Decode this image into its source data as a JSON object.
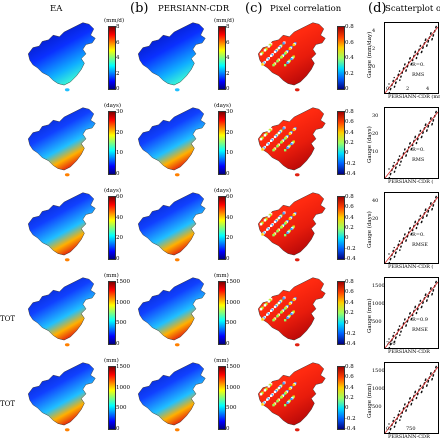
{
  "panels": {
    "a": {
      "letter": "",
      "title": "EA"
    },
    "b": {
      "letter": "(b)",
      "title": "PERSIANN-CDR"
    },
    "c": {
      "letter": "(c)",
      "title": "Pixel correlation"
    },
    "d": {
      "letter": "(d)",
      "title": "Scatterplot of m"
    }
  },
  "row_labels": [
    "",
    "",
    "",
    "TOT",
    "TOT"
  ],
  "rows": [
    {
      "unit": "(mm/d)",
      "ticks": [
        "8",
        "6",
        "4",
        "2",
        "0"
      ],
      "corr_ticks": [
        "0.8",
        "0.6",
        "0.4",
        "0.2",
        "0"
      ],
      "sc_ylabel": "Gauge (mm/day)",
      "sc_xlabel": "PERSIANN-CDR (mm",
      "sc_r": "R=0.",
      "sc_rmse": "RMS",
      "sc_xticks": [
        "0",
        "2",
        "4"
      ],
      "sc_yticks": [
        "4",
        "2",
        "0"
      ]
    },
    {
      "unit": "(days)",
      "ticks": [
        "30",
        "20",
        "10",
        "0"
      ],
      "corr_ticks": [
        "0.8",
        "0.6",
        "0.4",
        "0.2",
        "0",
        "-0.2",
        "-0.4"
      ],
      "sc_ylabel": "Gauge (days)",
      "sc_xlabel": "PERSIANN-CDR (",
      "sc_r": "R=0.",
      "sc_rmse": "RMS",
      "sc_xticks": [],
      "sc_yticks": [
        "30",
        "20",
        "10"
      ]
    },
    {
      "unit": "(days)",
      "ticks": [
        "60",
        "40",
        "20",
        "0"
      ],
      "corr_ticks": [
        "0.8",
        "0.6",
        "0.4",
        "0.2",
        "0",
        "-0.2",
        "-0.4"
      ],
      "sc_ylabel": "Gauge (days)",
      "sc_xlabel": "PERSIANN-CDR (",
      "sc_r": "R=0.",
      "sc_rmse": "RMSE",
      "sc_xticks": [],
      "sc_yticks": [
        "40",
        "20"
      ]
    },
    {
      "unit": "(mm)",
      "ticks": [
        "1500",
        "1000",
        "500",
        "0"
      ],
      "corr_ticks": [
        "0.8",
        "0.6",
        "0.4",
        "0.2",
        "0",
        "-0.2",
        "-0.4"
      ],
      "sc_ylabel": "Gauge (mm)",
      "sc_xlabel": "PERSIANN-CDR",
      "sc_r": "R=0.9",
      "sc_rmse": "RMSE",
      "sc_xticks": [
        "750"
      ],
      "sc_yticks": [
        "1500",
        "1000",
        "500"
      ]
    },
    {
      "unit": "(mm)",
      "ticks": [
        "1500",
        "1000",
        "500",
        "0"
      ],
      "corr_ticks": [
        "0.8",
        "0.6",
        "0.4",
        "0.2",
        "0",
        "-0.2",
        "-0.4"
      ],
      "sc_ylabel": "Gauge (mm)",
      "sc_xlabel": "PERSIANN-CDR",
      "sc_r": "",
      "sc_rmse": "",
      "sc_xticks": [
        "0",
        "750"
      ],
      "sc_yticks": [
        "1500",
        "1000",
        "500"
      ]
    }
  ],
  "colors": {
    "jet": [
      "#00007f",
      "#0000ff",
      "#007fff",
      "#00ffff",
      "#7fff7f",
      "#ffff00",
      "#ff7f00",
      "#ff0000",
      "#7f0000"
    ],
    "map_background": "#0a2cff",
    "scatter_points": "#111111",
    "fit_line": "#d62222"
  }
}
